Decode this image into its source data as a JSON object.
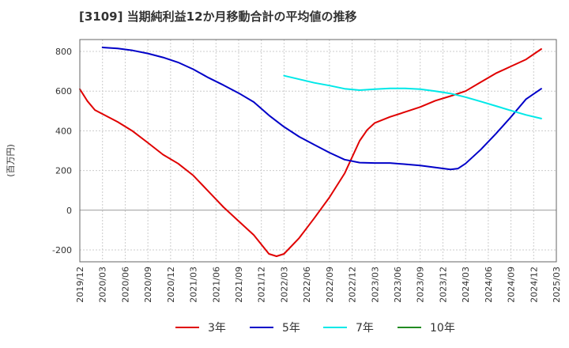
{
  "chart_data": {
    "type": "line",
    "title": "[3109]  当期純利益12か月移動合計の平均値の推移",
    "ylabel": "(百万円)",
    "xlabel": "",
    "ylim": [
      -260,
      860
    ],
    "yticks": [
      -200,
      0,
      200,
      400,
      600,
      800
    ],
    "xticks": [
      "2019/12",
      "2020/03",
      "2020/06",
      "2020/09",
      "2020/12",
      "2021/03",
      "2021/06",
      "2021/09",
      "2021/12",
      "2022/03",
      "2022/06",
      "2022/09",
      "2022/12",
      "2023/03",
      "2023/06",
      "2023/09",
      "2023/12",
      "2024/03",
      "2024/06",
      "2024/09",
      "2024/12",
      "2025/03"
    ],
    "grid": true,
    "legend_position": "bottom",
    "series": [
      {
        "name": "3年",
        "color": "#e00000",
        "points": [
          [
            "2019/12",
            610
          ],
          [
            "2020/01",
            550
          ],
          [
            "2020/02",
            505
          ],
          [
            "2020/03",
            485
          ],
          [
            "2020/05",
            445
          ],
          [
            "2020/07",
            398
          ],
          [
            "2020/09",
            340
          ],
          [
            "2020/11",
            280
          ],
          [
            "2021/01",
            235
          ],
          [
            "2021/03",
            175
          ],
          [
            "2021/05",
            95
          ],
          [
            "2021/07",
            15
          ],
          [
            "2021/09",
            -55
          ],
          [
            "2021/11",
            -125
          ],
          [
            "2022/01",
            -220
          ],
          [
            "2022/02",
            -232
          ],
          [
            "2022/03",
            -220
          ],
          [
            "2022/05",
            -140
          ],
          [
            "2022/07",
            -40
          ],
          [
            "2022/09",
            65
          ],
          [
            "2022/11",
            185
          ],
          [
            "2023/01",
            350
          ],
          [
            "2023/02",
            405
          ],
          [
            "2023/03",
            440
          ],
          [
            "2023/05",
            470
          ],
          [
            "2023/07",
            495
          ],
          [
            "2023/09",
            520
          ],
          [
            "2023/11",
            552
          ],
          [
            "2024/01",
            575
          ],
          [
            "2024/03",
            600
          ],
          [
            "2024/05",
            645
          ],
          [
            "2024/07",
            690
          ],
          [
            "2024/09",
            725
          ],
          [
            "2024/11",
            760
          ],
          [
            "2025/01",
            812
          ]
        ]
      },
      {
        "name": "5年",
        "color": "#0000c8",
        "points": [
          [
            "2020/03",
            820
          ],
          [
            "2020/05",
            815
          ],
          [
            "2020/07",
            805
          ],
          [
            "2020/09",
            790
          ],
          [
            "2020/11",
            770
          ],
          [
            "2021/01",
            745
          ],
          [
            "2021/03",
            710
          ],
          [
            "2021/05",
            668
          ],
          [
            "2021/07",
            630
          ],
          [
            "2021/09",
            590
          ],
          [
            "2021/11",
            545
          ],
          [
            "2022/01",
            478
          ],
          [
            "2022/03",
            420
          ],
          [
            "2022/05",
            370
          ],
          [
            "2022/07",
            330
          ],
          [
            "2022/09",
            290
          ],
          [
            "2022/11",
            255
          ],
          [
            "2023/01",
            240
          ],
          [
            "2023/03",
            238
          ],
          [
            "2023/05",
            238
          ],
          [
            "2023/07",
            232
          ],
          [
            "2023/09",
            225
          ],
          [
            "2023/11",
            215
          ],
          [
            "2024/01",
            205
          ],
          [
            "2024/02",
            210
          ],
          [
            "2024/03",
            235
          ],
          [
            "2024/05",
            305
          ],
          [
            "2024/07",
            385
          ],
          [
            "2024/09",
            470
          ],
          [
            "2024/11",
            560
          ],
          [
            "2025/01",
            612
          ]
        ]
      },
      {
        "name": "7年",
        "color": "#00e8e8",
        "points": [
          [
            "2022/03",
            678
          ],
          [
            "2022/05",
            660
          ],
          [
            "2022/07",
            642
          ],
          [
            "2022/09",
            628
          ],
          [
            "2022/11",
            612
          ],
          [
            "2023/01",
            605
          ],
          [
            "2023/03",
            610
          ],
          [
            "2023/05",
            614
          ],
          [
            "2023/07",
            614
          ],
          [
            "2023/09",
            610
          ],
          [
            "2023/11",
            600
          ],
          [
            "2024/01",
            588
          ],
          [
            "2024/03",
            570
          ],
          [
            "2024/05",
            548
          ],
          [
            "2024/07",
            525
          ],
          [
            "2024/09",
            502
          ],
          [
            "2024/11",
            480
          ],
          [
            "2025/01",
            462
          ]
        ]
      },
      {
        "name": "10年",
        "color": "#228b22",
        "points": []
      }
    ]
  }
}
